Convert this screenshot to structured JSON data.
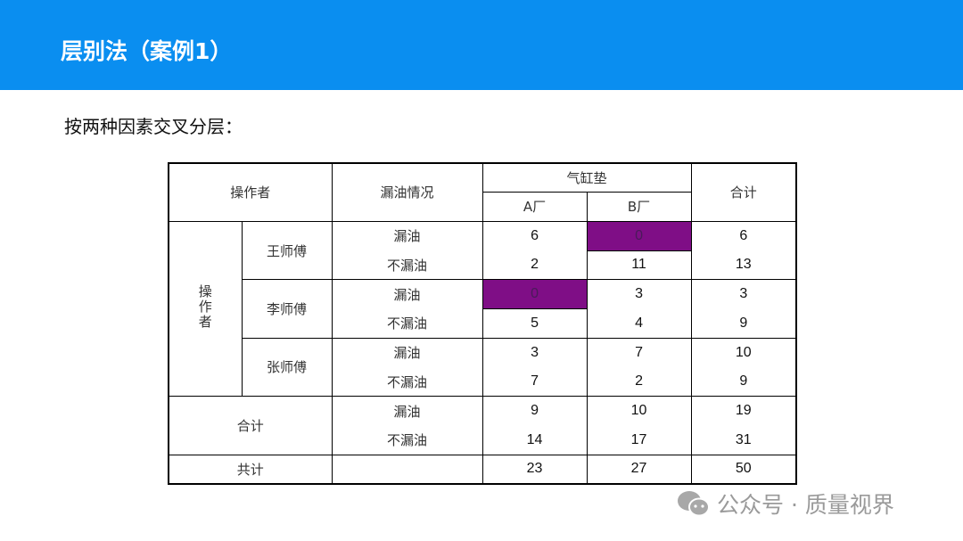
{
  "title": "层别法（案例1）",
  "subtitle": "按两种因素交叉分层：",
  "table": {
    "headers": {
      "operator": "操作者",
      "leak_status": "漏油情况",
      "gasket": "气缸垫",
      "factory_a": "A厂",
      "factory_b": "B厂",
      "total": "合计"
    },
    "operator_group_label": "操作者",
    "groups": [
      {
        "name": "王师傅",
        "rows": [
          {
            "status": "漏油",
            "a": "6",
            "b": "0",
            "total": "6"
          },
          {
            "status": "不漏油",
            "a": "2",
            "b": "11",
            "total": "13"
          }
        ]
      },
      {
        "name": "李师傅",
        "rows": [
          {
            "status": "漏油",
            "a": "0",
            "b": "3",
            "total": "3"
          },
          {
            "status": "不漏油",
            "a": "5",
            "b": "4",
            "total": "9"
          }
        ]
      },
      {
        "name": "张师傅",
        "rows": [
          {
            "status": "漏油",
            "a": "3",
            "b": "7",
            "total": "10"
          },
          {
            "status": "不漏油",
            "a": "7",
            "b": "2",
            "total": "9"
          }
        ]
      }
    ],
    "subtotal": {
      "label": "合计",
      "rows": [
        {
          "status": "漏油",
          "a": "9",
          "b": "10",
          "total": "19"
        },
        {
          "status": "不漏油",
          "a": "14",
          "b": "17",
          "total": "31"
        }
      ]
    },
    "grand_total": {
      "label": "共计",
      "a": "23",
      "b": "27",
      "total": "50"
    },
    "highlight_color": "#7f0e86"
  },
  "watermark": {
    "icon": "wechat-icon",
    "text": "公众号 · 质量视界"
  }
}
